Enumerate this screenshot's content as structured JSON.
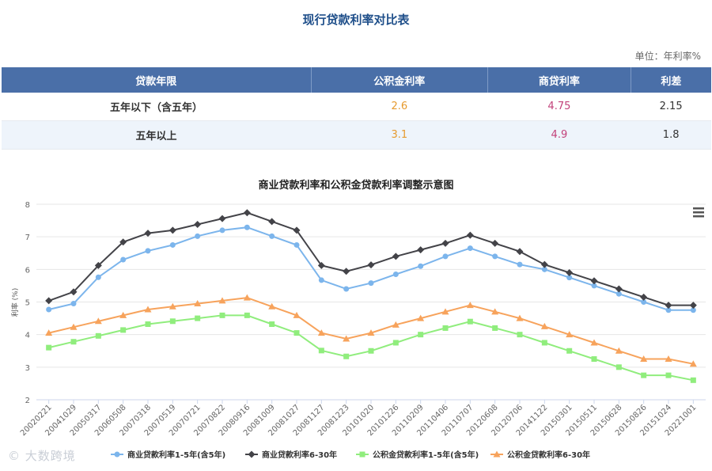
{
  "page_title": "现行贷款利率对比表",
  "unit_label": "单位：年利率%",
  "table": {
    "headers": [
      "贷款年限",
      "公积金利率",
      "商贷利率",
      "利差"
    ],
    "rows": [
      {
        "term": "五年以下（含五年）",
        "fund": "2.6",
        "commercial": "4.75",
        "diff": "2.15"
      },
      {
        "term": "五年以上",
        "fund": "3.1",
        "commercial": "4.9",
        "diff": "1.8"
      }
    ]
  },
  "watermark": "大数跨境",
  "chart_data": {
    "type": "line",
    "title": "商业贷款利率和公积金贷款利率调整示意图",
    "ylabel": "利率 (%)",
    "ylim": [
      2,
      8
    ],
    "yticks": [
      "2",
      "3",
      "4",
      "5",
      "6",
      "7",
      "8"
    ],
    "grid": "y",
    "legend": "bottom",
    "categories": [
      "20020221",
      "20041029",
      "20050317",
      "20060508",
      "20070318",
      "20070519",
      "20070721",
      "20070822",
      "20080916",
      "20081009",
      "20081027",
      "20081127",
      "20081223",
      "20101020",
      "20101226",
      "20110209",
      "20110406",
      "20110707",
      "20120608",
      "20120706",
      "20141122",
      "20150301",
      "20150511",
      "20150628",
      "20150826",
      "20151024",
      "20221001"
    ],
    "series": [
      {
        "name": "商业贷款利率1-5年(含5年)",
        "color": "#7cb5ec",
        "marker": "circle",
        "values": [
          4.77,
          4.95,
          5.76,
          6.3,
          6.57,
          6.75,
          7.02,
          7.2,
          7.29,
          7.02,
          6.75,
          5.67,
          5.4,
          5.58,
          5.85,
          6.1,
          6.4,
          6.65,
          6.4,
          6.15,
          6.0,
          5.75,
          5.5,
          5.25,
          5.0,
          4.75,
          4.75
        ]
      },
      {
        "name": "商业贷款利率6-30年",
        "color": "#434348",
        "marker": "diamond",
        "values": [
          5.04,
          5.31,
          6.12,
          6.84,
          7.11,
          7.2,
          7.38,
          7.56,
          7.74,
          7.47,
          7.2,
          6.12,
          5.94,
          6.14,
          6.4,
          6.6,
          6.8,
          7.05,
          6.8,
          6.55,
          6.15,
          5.9,
          5.65,
          5.4,
          5.15,
          4.9,
          4.9
        ]
      },
      {
        "name": "公积金贷款利率1-5年(含5年)",
        "color": "#90ed7d",
        "marker": "square",
        "values": [
          3.6,
          3.78,
          3.96,
          4.14,
          4.32,
          4.41,
          4.5,
          4.59,
          4.59,
          4.32,
          4.05,
          3.51,
          3.33,
          3.5,
          3.75,
          4.0,
          4.2,
          4.4,
          4.2,
          4.0,
          3.75,
          3.5,
          3.25,
          3.0,
          2.75,
          2.75,
          2.6
        ]
      },
      {
        "name": "公积金贷款利率6-30年",
        "color": "#f7a35c",
        "marker": "triangle",
        "values": [
          4.05,
          4.23,
          4.41,
          4.59,
          4.77,
          4.86,
          4.95,
          5.04,
          5.13,
          4.86,
          4.59,
          4.05,
          3.87,
          4.05,
          4.3,
          4.5,
          4.7,
          4.9,
          4.7,
          4.5,
          4.25,
          4.0,
          3.75,
          3.5,
          3.25,
          3.25,
          3.1
        ]
      }
    ]
  }
}
